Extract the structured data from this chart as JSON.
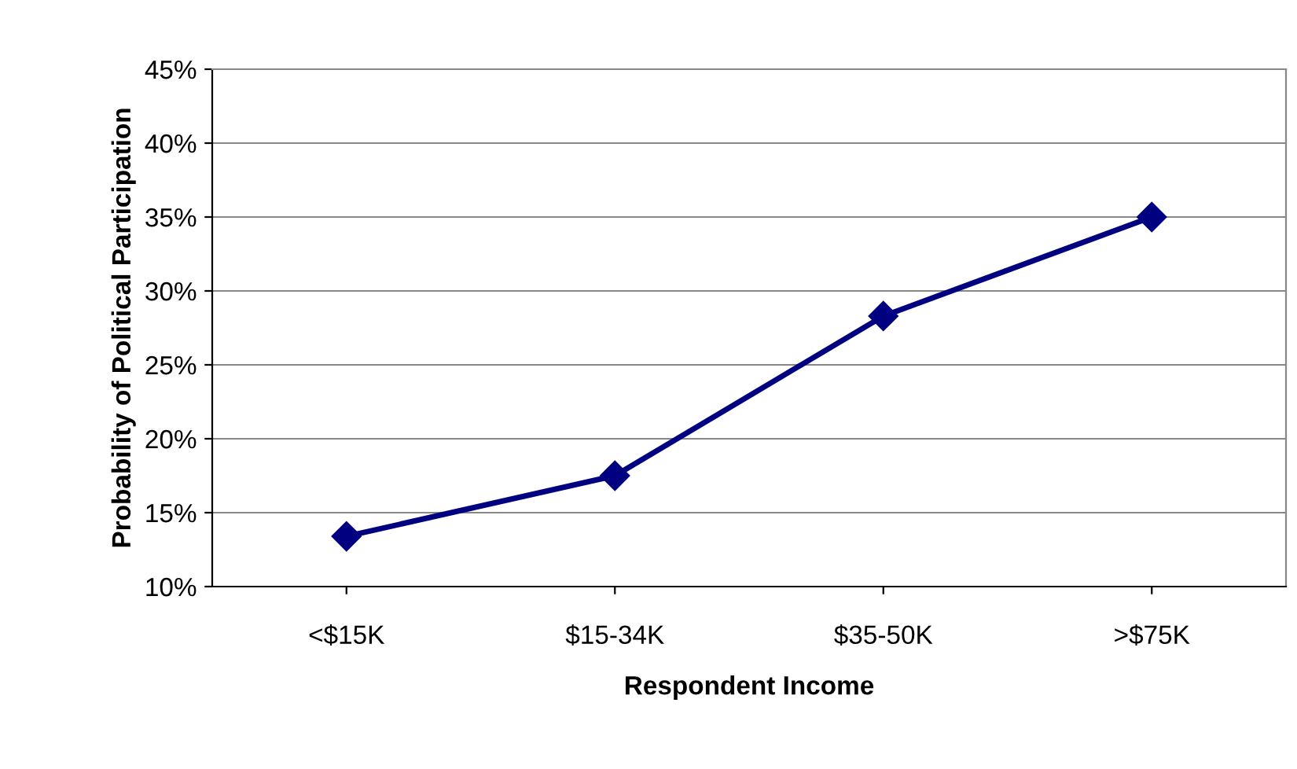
{
  "chart_data": {
    "type": "line",
    "xlabel": "Respondent Income",
    "ylabel": "Probability of Political Participation",
    "categories": [
      "<$15K",
      "$15-34K",
      "$35-50K",
      ">$75K"
    ],
    "series": [
      {
        "color": "#000080",
        "values": [
          13.4,
          17.5,
          28.3,
          35.0
        ]
      }
    ],
    "ylim": [
      10,
      45
    ],
    "yticks": [
      {
        "value": 10,
        "label": "10%"
      },
      {
        "value": 15,
        "label": "15%"
      },
      {
        "value": 20,
        "label": "20%"
      },
      {
        "value": 25,
        "label": "25%"
      },
      {
        "value": 30,
        "label": "30%"
      },
      {
        "value": 35,
        "label": "35%"
      },
      {
        "value": 40,
        "label": "40%"
      },
      {
        "value": 45,
        "label": "45%"
      }
    ],
    "grid": "y",
    "marker": "diamond",
    "line_style": "solid",
    "legend": false
  }
}
